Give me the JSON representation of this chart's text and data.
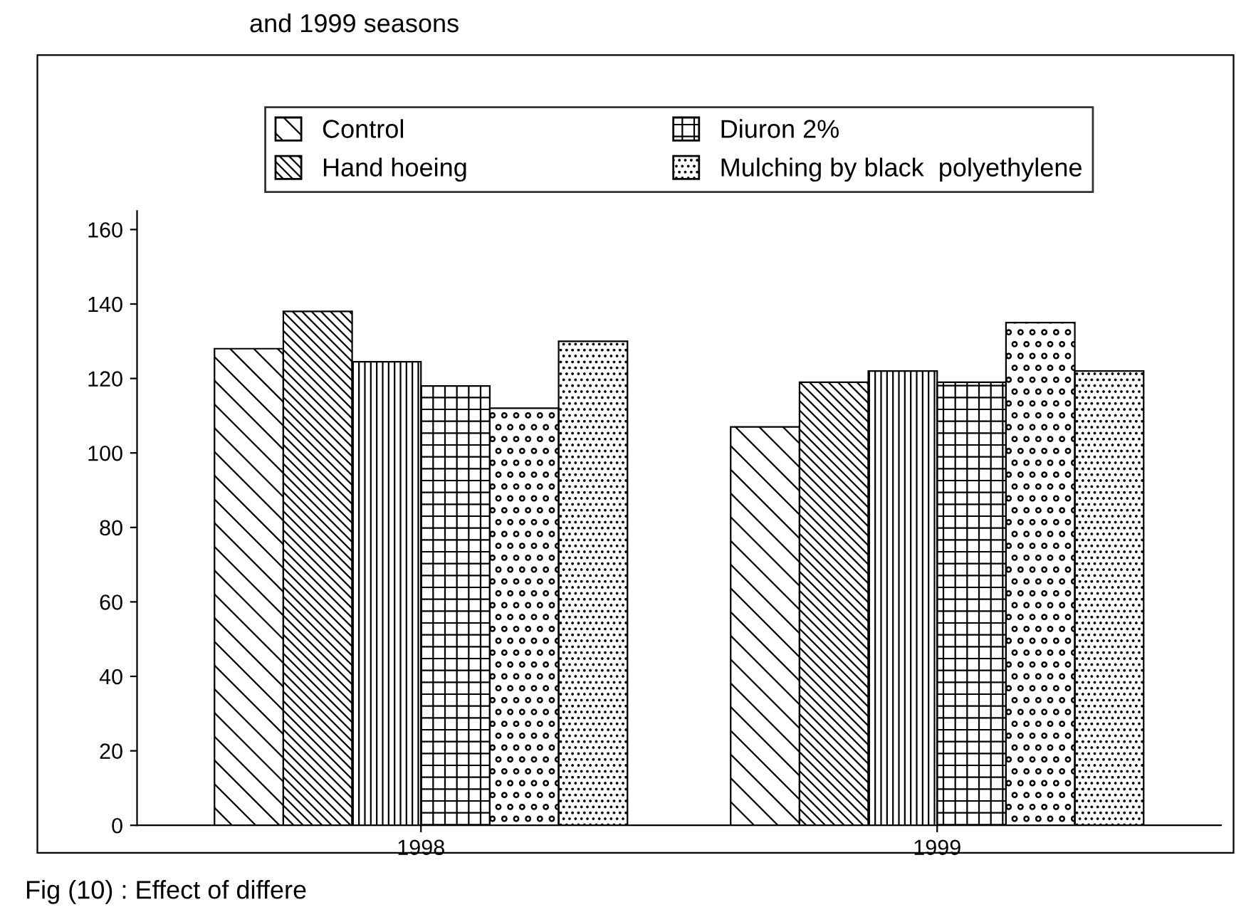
{
  "chart_data": {
    "type": "bar",
    "title": "and 1999 seasons",
    "categories": [
      "1998",
      "1999"
    ],
    "series": [
      {
        "name": "Control",
        "color": "#000000",
        "values": [
          128,
          107
        ]
      },
      {
        "name": "Hand hoeing",
        "color": "#000000",
        "values": [
          138,
          119
        ]
      },
      {
        "color": "#000000",
        "values": [
          124.5,
          122
        ]
      },
      {
        "name": "Diuron 2%",
        "color": "#000000",
        "values": [
          118,
          119
        ]
      },
      {
        "color": "#000000",
        "values": [
          112,
          135
        ]
      },
      {
        "name": "Mulching by black  polyethylene",
        "color": "#000000",
        "values": [
          130,
          122
        ]
      }
    ],
    "ylim": [
      0,
      165
    ],
    "yticks": [
      0,
      20,
      40,
      60,
      80,
      100,
      120,
      140,
      160
    ],
    "grid": false,
    "legend": "top",
    "annotations": [
      "Fig (10) : Effect of differe"
    ]
  }
}
